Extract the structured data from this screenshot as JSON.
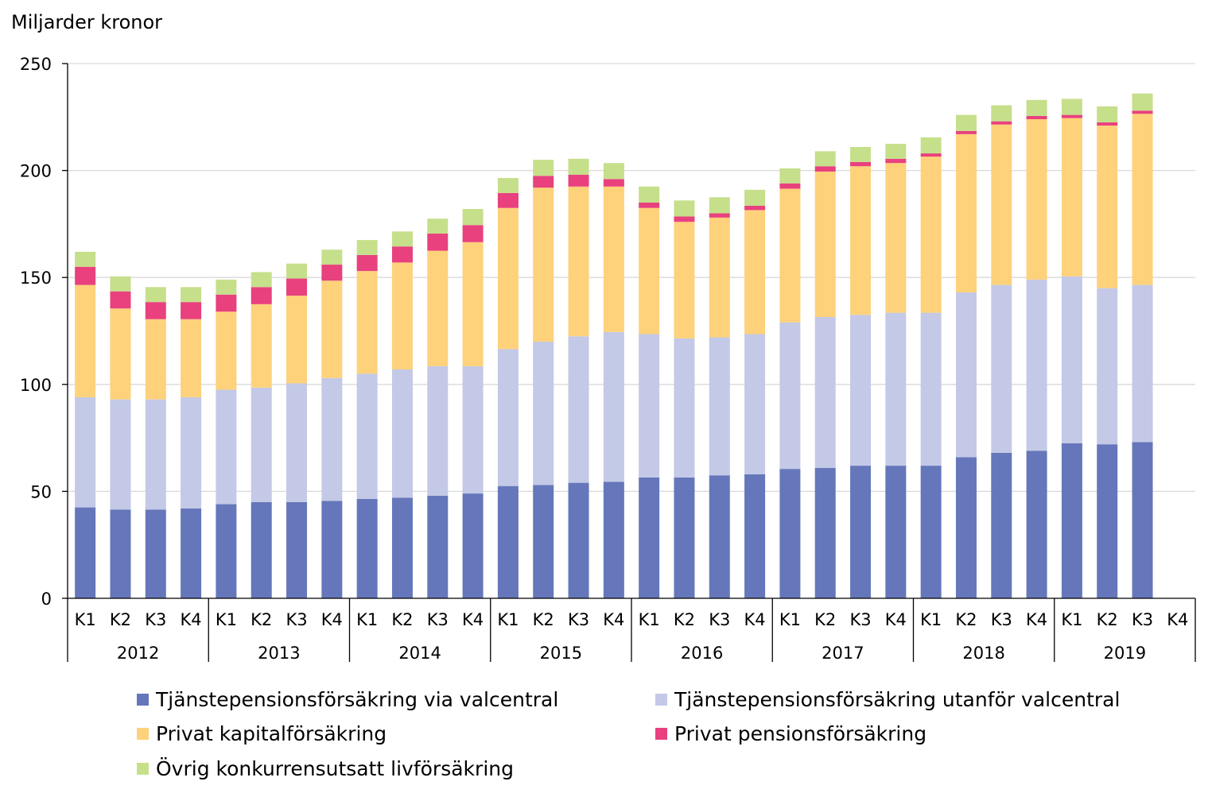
{
  "chart_data": {
    "type": "bar",
    "stacked": true,
    "ylabel": "Miljarder kronor",
    "ylim": [
      0,
      250
    ],
    "yticks": [
      0,
      50,
      100,
      150,
      200,
      250
    ],
    "grid": true,
    "legend_position": "bottom",
    "quarters": [
      "K1",
      "K2",
      "K3",
      "K4",
      "K1",
      "K2",
      "K3",
      "K4",
      "K1",
      "K2",
      "K3",
      "K4",
      "K1",
      "K2",
      "K3",
      "K4",
      "K1",
      "K2",
      "K3",
      "K4",
      "K1",
      "K2",
      "K3",
      "K4",
      "K1",
      "K2",
      "K3",
      "K4",
      "K1",
      "K2",
      "K3",
      "K4"
    ],
    "years": [
      "2012",
      "2013",
      "2014",
      "2015",
      "2016",
      "2017",
      "2018",
      "2019"
    ],
    "series": [
      {
        "name": "Tjänstepensionsförsäkring via valcentral",
        "color": "#6577ba",
        "values": [
          42.5,
          41.5,
          41.5,
          42,
          44,
          45,
          45,
          45.5,
          46.5,
          47,
          48,
          49,
          52.5,
          53,
          54,
          54.5,
          56.5,
          56.5,
          57.5,
          58,
          60.5,
          61,
          62,
          62,
          62,
          66,
          68,
          69,
          72.5,
          72,
          73,
          null
        ]
      },
      {
        "name": "Tjänstepensionsförsäkring utanför valcentral",
        "color": "#c3c9e6",
        "values": [
          51.5,
          51.5,
          51.5,
          52,
          53.5,
          53.5,
          55.5,
          57.5,
          58.5,
          60,
          60.5,
          59.5,
          64,
          67,
          68.5,
          70,
          67,
          65,
          64.5,
          65.5,
          68.5,
          70.5,
          70.5,
          71.5,
          71.5,
          77,
          78.5,
          80,
          78,
          73,
          73.5,
          null
        ]
      },
      {
        "name": "Privat kapitalförsäkring",
        "color": "#fed17b",
        "values": [
          52.5,
          42.5,
          37.5,
          36.5,
          36.5,
          39,
          41,
          45.5,
          48,
          50,
          54,
          58,
          66,
          72,
          70,
          68,
          59,
          54.5,
          56,
          58,
          62.5,
          68,
          69.5,
          70,
          73,
          74,
          75,
          75,
          74,
          76,
          80,
          null
        ]
      },
      {
        "name": "Privat pensionsförsäkring",
        "color": "#e8417e",
        "values": [
          8.5,
          8,
          8,
          8,
          8,
          8,
          8,
          7.5,
          7.5,
          7.5,
          8,
          8,
          7,
          5.5,
          5.5,
          3.5,
          2.5,
          2.5,
          2,
          2,
          2.5,
          2.5,
          2,
          2,
          1.5,
          1.5,
          1.5,
          1.5,
          1.5,
          1.5,
          1.5,
          null
        ]
      },
      {
        "name": "Övrig konkurrensutsatt livförsäkring",
        "color": "#c6df8b",
        "values": [
          7,
          7,
          7,
          7,
          7,
          7,
          7,
          7,
          7,
          7,
          7,
          7.5,
          7,
          7.5,
          7.5,
          7.5,
          7.5,
          7.5,
          7.5,
          7.5,
          7,
          7,
          7,
          7,
          7.5,
          7.5,
          7.5,
          7.5,
          7.5,
          7.5,
          8,
          null
        ]
      }
    ]
  }
}
